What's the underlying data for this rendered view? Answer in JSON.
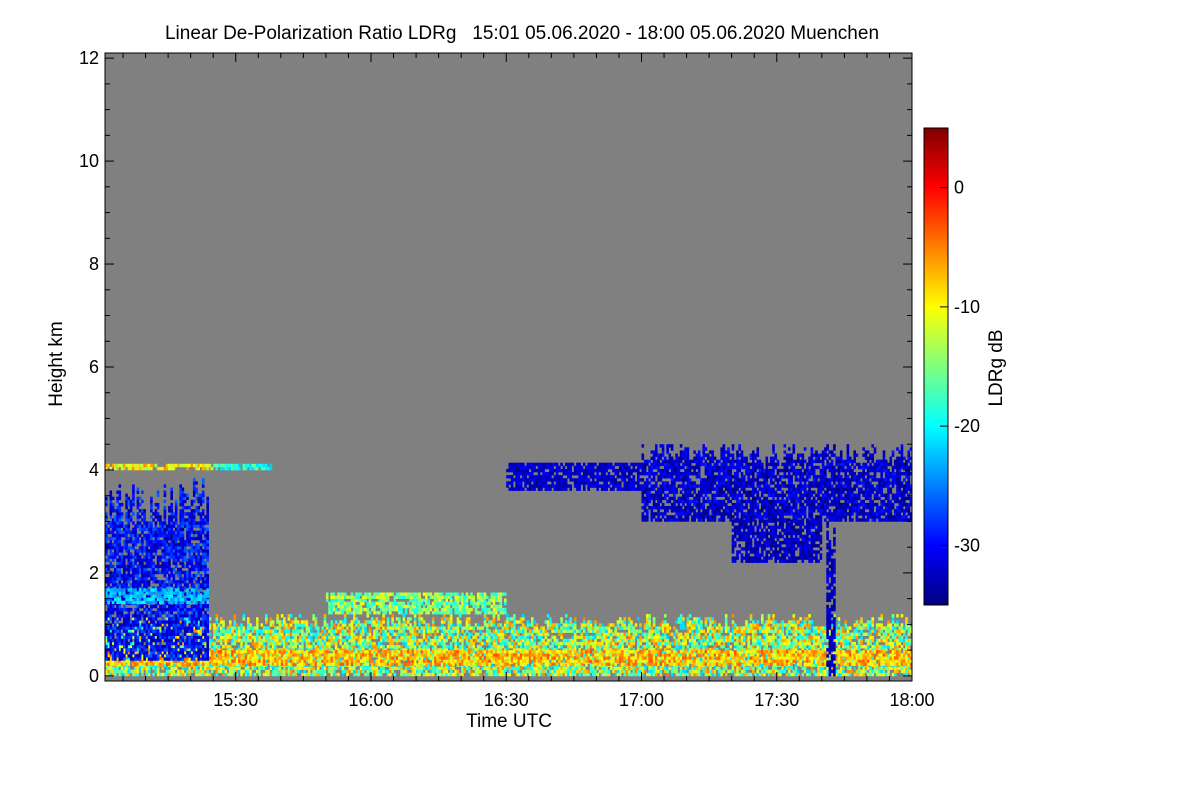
{
  "chart_data": {
    "type": "heatmap",
    "title": "Linear De-Polarization Ratio LDRg   15:01 05.06.2020 - 18:00 05.06.2020 Muenchen",
    "xlabel": "Time UTC",
    "ylabel": "Height km",
    "colorbar_label": "LDRg dB",
    "x_start": "15:01",
    "x_end": "18:00",
    "xlim_minutes": [
      901,
      1080
    ],
    "x_ticks": [
      {
        "label": "15:30",
        "minutes": 930
      },
      {
        "label": "16:00",
        "minutes": 960
      },
      {
        "label": "16:30",
        "minutes": 990
      },
      {
        "label": "17:00",
        "minutes": 1020
      },
      {
        "label": "17:30",
        "minutes": 1050
      },
      {
        "label": "18:00",
        "minutes": 1080
      }
    ],
    "ylim": [
      -0.1,
      12.1
    ],
    "y_ticks": [
      0,
      2,
      4,
      6,
      8,
      10,
      12
    ],
    "colorbar_range": [
      -35,
      5
    ],
    "colorbar_ticks": [
      0,
      -10,
      -20,
      -30
    ],
    "colormap": "jet",
    "background_color": "#808080",
    "regions": [
      {
        "t0": 901,
        "t1": 1080,
        "h0": 0.0,
        "h1": 1.2,
        "ldr_min": -22,
        "ldr_max": -5
      },
      {
        "t0": 901,
        "t1": 1080,
        "h0": 0.2,
        "h1": 0.5,
        "ldr_min": -12,
        "ldr_max": -3
      },
      {
        "t0": 901,
        "t1": 924,
        "h0": 0.3,
        "h1": 3.8,
        "ldr_min": -34,
        "ldr_max": -26
      },
      {
        "t0": 901,
        "t1": 924,
        "h0": 1.4,
        "h1": 1.7,
        "ldr_min": -25,
        "ldr_max": -20
      },
      {
        "t0": 950,
        "t1": 990,
        "h0": 1.2,
        "h1": 1.6,
        "ldr_min": -20,
        "ldr_max": -10
      },
      {
        "t0": 990,
        "t1": 1020,
        "h0": 3.6,
        "h1": 4.1,
        "ldr_min": -34,
        "ldr_max": -30
      },
      {
        "t0": 1020,
        "t1": 1080,
        "h0": 3.0,
        "h1": 4.5,
        "ldr_min": -35,
        "ldr_max": -29
      },
      {
        "t0": 1040,
        "t1": 1060,
        "h0": 2.2,
        "h1": 3.0,
        "ldr_min": -35,
        "ldr_max": -30
      },
      {
        "t0": 1061,
        "t1": 1063,
        "h0": 0.0,
        "h1": 3.0,
        "ldr_min": -35,
        "ldr_max": -30
      },
      {
        "t0": 901,
        "t1": 925,
        "h0": 4.0,
        "h1": 4.1,
        "ldr_min": -15,
        "ldr_max": -5
      },
      {
        "t0": 925,
        "t1": 938,
        "h0": 4.0,
        "h1": 4.1,
        "ldr_min": -22,
        "ldr_max": -15
      }
    ]
  }
}
